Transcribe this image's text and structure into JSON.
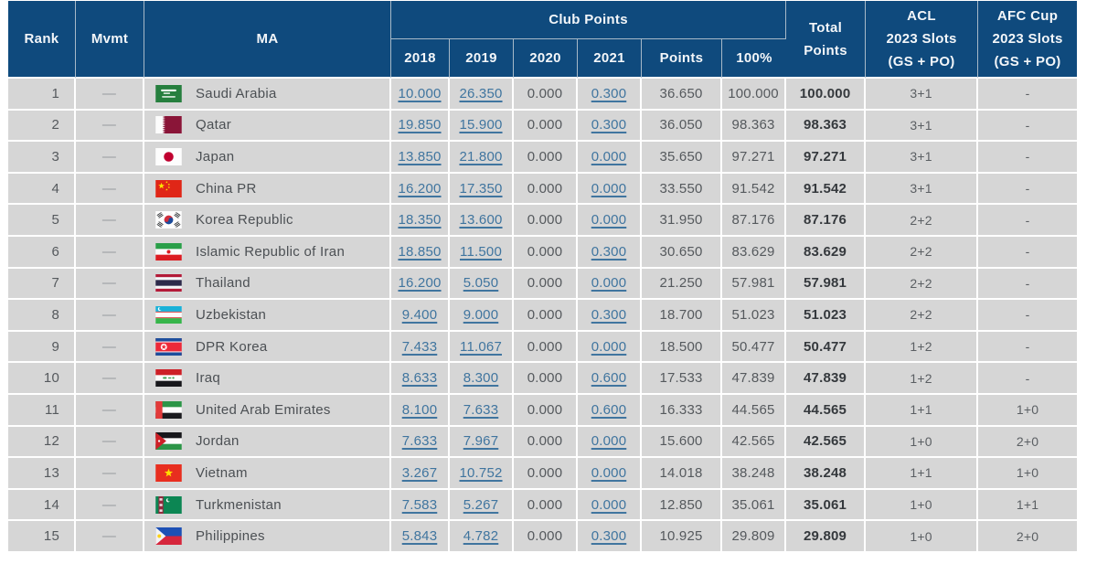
{
  "table": {
    "colors": {
      "header_bg": "#0f4a7d",
      "header_line": "#a7b9c8",
      "row_bg": "#d6d6d6",
      "link": "#40759f"
    },
    "header": {
      "rank": "Rank",
      "mvmt": "Mvmt",
      "ma": "MA",
      "club_points": "Club Points",
      "years": [
        "2018",
        "2019",
        "2020",
        "2021"
      ],
      "points": "Points",
      "pct": "100%",
      "total_points": "Total\nPoints",
      "acl_slots": "ACL\n2023 Slots\n(GS + PO)",
      "afc_cup_slots": "AFC Cup\n2023 Slots\n(GS + PO)"
    },
    "rows": [
      {
        "rank": "1",
        "mvmt": "—",
        "country": "Saudi Arabia",
        "flag": "flag-saudi-arabia",
        "y2018": "10.000",
        "y2019": "26.350",
        "y2020": "0.000",
        "y2021": "0.300",
        "points": "36.650",
        "pct": "100.000",
        "total": "100.000",
        "acl": "3+1",
        "afc": "-"
      },
      {
        "rank": "2",
        "mvmt": "—",
        "country": "Qatar",
        "flag": "flag-qatar",
        "y2018": "19.850",
        "y2019": "15.900",
        "y2020": "0.000",
        "y2021": "0.300",
        "points": "36.050",
        "pct": "98.363",
        "total": "98.363",
        "acl": "3+1",
        "afc": "-"
      },
      {
        "rank": "3",
        "mvmt": "—",
        "country": "Japan",
        "flag": "flag-japan",
        "y2018": "13.850",
        "y2019": "21.800",
        "y2020": "0.000",
        "y2021": "0.000",
        "points": "35.650",
        "pct": "97.271",
        "total": "97.271",
        "acl": "3+1",
        "afc": "-"
      },
      {
        "rank": "4",
        "mvmt": "—",
        "country": "China PR",
        "flag": "flag-china-pr",
        "y2018": "16.200",
        "y2019": "17.350",
        "y2020": "0.000",
        "y2021": "0.000",
        "points": "33.550",
        "pct": "91.542",
        "total": "91.542",
        "acl": "3+1",
        "afc": "-"
      },
      {
        "rank": "5",
        "mvmt": "—",
        "country": "Korea Republic",
        "flag": "flag-korea-republic",
        "y2018": "18.350",
        "y2019": "13.600",
        "y2020": "0.000",
        "y2021": "0.000",
        "points": "31.950",
        "pct": "87.176",
        "total": "87.176",
        "acl": "2+2",
        "afc": "-"
      },
      {
        "rank": "6",
        "mvmt": "—",
        "country": "Islamic Republic of Iran",
        "flag": "flag-iran",
        "y2018": "18.850",
        "y2019": "11.500",
        "y2020": "0.000",
        "y2021": "0.300",
        "points": "30.650",
        "pct": "83.629",
        "total": "83.629",
        "acl": "2+2",
        "afc": "-"
      },
      {
        "rank": "7",
        "mvmt": "—",
        "country": "Thailand",
        "flag": "flag-thailand",
        "y2018": "16.200",
        "y2019": "5.050",
        "y2020": "0.000",
        "y2021": "0.000",
        "points": "21.250",
        "pct": "57.981",
        "total": "57.981",
        "acl": "2+2",
        "afc": "-"
      },
      {
        "rank": "8",
        "mvmt": "—",
        "country": "Uzbekistan",
        "flag": "flag-uzbekistan",
        "y2018": "9.400",
        "y2019": "9.000",
        "y2020": "0.000",
        "y2021": "0.300",
        "points": "18.700",
        "pct": "51.023",
        "total": "51.023",
        "acl": "2+2",
        "afc": "-"
      },
      {
        "rank": "9",
        "mvmt": "—",
        "country": "DPR Korea",
        "flag": "flag-dpr-korea",
        "y2018": "7.433",
        "y2019": "11.067",
        "y2020": "0.000",
        "y2021": "0.000",
        "points": "18.500",
        "pct": "50.477",
        "total": "50.477",
        "acl": "1+2",
        "afc": "-"
      },
      {
        "rank": "10",
        "mvmt": "—",
        "country": "Iraq",
        "flag": "flag-iraq",
        "y2018": "8.633",
        "y2019": "8.300",
        "y2020": "0.000",
        "y2021": "0.600",
        "points": "17.533",
        "pct": "47.839",
        "total": "47.839",
        "acl": "1+2",
        "afc": "-"
      },
      {
        "rank": "11",
        "mvmt": "—",
        "country": "United Arab Emirates",
        "flag": "flag-uae",
        "y2018": "8.100",
        "y2019": "7.633",
        "y2020": "0.000",
        "y2021": "0.600",
        "points": "16.333",
        "pct": "44.565",
        "total": "44.565",
        "acl": "1+1",
        "afc": "1+0"
      },
      {
        "rank": "12",
        "mvmt": "—",
        "country": "Jordan",
        "flag": "flag-jordan",
        "y2018": "7.633",
        "y2019": "7.967",
        "y2020": "0.000",
        "y2021": "0.000",
        "points": "15.600",
        "pct": "42.565",
        "total": "42.565",
        "acl": "1+0",
        "afc": "2+0"
      },
      {
        "rank": "13",
        "mvmt": "—",
        "country": "Vietnam",
        "flag": "flag-vietnam",
        "y2018": "3.267",
        "y2019": "10.752",
        "y2020": "0.000",
        "y2021": "0.000",
        "points": "14.018",
        "pct": "38.248",
        "total": "38.248",
        "acl": "1+1",
        "afc": "1+0"
      },
      {
        "rank": "14",
        "mvmt": "—",
        "country": "Turkmenistan",
        "flag": "flag-turkmenistan",
        "y2018": "7.583",
        "y2019": "5.267",
        "y2020": "0.000",
        "y2021": "0.000",
        "points": "12.850",
        "pct": "35.061",
        "total": "35.061",
        "acl": "1+0",
        "afc": "1+1"
      },
      {
        "rank": "15",
        "mvmt": "—",
        "country": "Philippines",
        "flag": "flag-philippines",
        "y2018": "5.843",
        "y2019": "4.782",
        "y2020": "0.000",
        "y2021": "0.300",
        "points": "10.925",
        "pct": "29.809",
        "total": "29.809",
        "acl": "1+0",
        "afc": "2+0"
      }
    ]
  }
}
